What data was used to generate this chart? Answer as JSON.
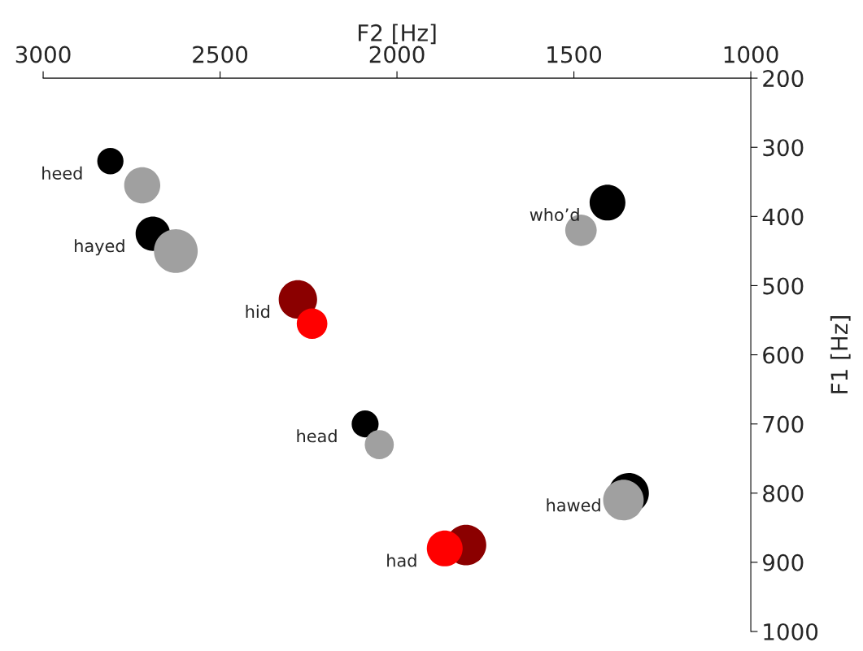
{
  "chart_data": {
    "type": "bubble",
    "xlabel": "F2 [Hz]",
    "ylabel": "F1 [Hz]",
    "xlim": [
      3000,
      1000
    ],
    "xticks": [
      3000,
      2500,
      2000,
      1500,
      1000
    ],
    "ylim": [
      1000,
      200
    ],
    "yticks": [
      200,
      300,
      400,
      500,
      600,
      700,
      800,
      900,
      1000
    ],
    "grid": false,
    "legend": false,
    "series": [
      {
        "color": "#000000",
        "x": [
          2810,
          2690,
          1405,
          2090,
          1345
        ],
        "values": [
          320,
          425,
          380,
          700,
          800
        ],
        "sizes": [
          0.36,
          0.62,
          0.67,
          0.38,
          0.85
        ]
      },
      {
        "color": "#a0a0a0",
        "x": [
          2720,
          2625,
          1480,
          2050,
          1360
        ],
        "values": [
          355,
          450,
          420,
          730,
          810
        ],
        "sizes": [
          0.68,
          1,
          0.52,
          0.44,
          0.86
        ]
      },
      {
        "color": "#8b0000",
        "x": [
          2280,
          1805
        ],
        "values": [
          520,
          875
        ],
        "sizes": [
          0.77,
          0.86
        ]
      },
      {
        "color": "#ff0000",
        "x": [
          2240,
          1865
        ],
        "values": [
          555,
          880
        ],
        "sizes": [
          0.49,
          0.67
        ]
      }
    ],
    "annotations": [
      {
        "text": "heed",
        "x": 2810,
        "y": 320
      },
      {
        "text": "hayed",
        "x": 2690,
        "y": 425
      },
      {
        "text": "who’d",
        "x": 1405,
        "y": 380
      },
      {
        "text": "hid",
        "x": 2280,
        "y": 520
      },
      {
        "text": "head",
        "x": 2090,
        "y": 700
      },
      {
        "text": "hawed",
        "x": 1345,
        "y": 800
      },
      {
        "text": "had",
        "x": 1865,
        "y": 880
      }
    ]
  }
}
